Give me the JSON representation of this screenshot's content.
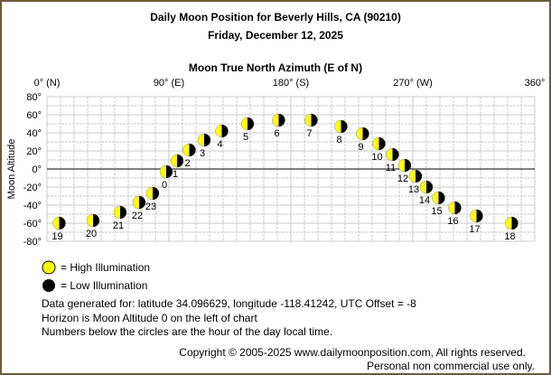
{
  "chart_data": {
    "type": "scatter",
    "title": "Daily Moon Position for Beverly Hills, CA (90210)",
    "subtitle": "Friday, December 12, 2025",
    "xlabel": "Moon True North Azimuth (E of N)",
    "ylabel": "Moon Altitude",
    "xlim": [
      0,
      360
    ],
    "ylim": [
      -80,
      80
    ],
    "grid": true,
    "x_ticks": [
      {
        "v": 0,
        "label": "0° (N)"
      },
      {
        "v": 90,
        "label": "90° (E)"
      },
      {
        "v": 180,
        "label": "180° (S)"
      },
      {
        "v": 270,
        "label": "270° (W)"
      },
      {
        "v": 360,
        "label": "360°"
      }
    ],
    "y_ticks": [
      {
        "v": 80,
        "label": "80°"
      },
      {
        "v": 60,
        "label": "60°"
      },
      {
        "v": 40,
        "label": "40°"
      },
      {
        "v": 20,
        "label": "20°"
      },
      {
        "v": 0,
        "label": "0°"
      },
      {
        "v": -20,
        "label": "-20°"
      },
      {
        "v": -40,
        "label": "-40°"
      },
      {
        "v": -60,
        "label": "-60°"
      },
      {
        "v": -80,
        "label": "-80°"
      }
    ],
    "points": [
      {
        "hour": "19",
        "az": 9,
        "alt": -60
      },
      {
        "hour": "20",
        "az": 34,
        "alt": -57
      },
      {
        "hour": "21",
        "az": 54,
        "alt": -48
      },
      {
        "hour": "22",
        "az": 68,
        "alt": -37
      },
      {
        "hour": "23",
        "az": 78,
        "alt": -27
      },
      {
        "hour": "0",
        "az": 88,
        "alt": -3
      },
      {
        "hour": "1",
        "az": 96,
        "alt": 9
      },
      {
        "hour": "2",
        "az": 105,
        "alt": 21
      },
      {
        "hour": "3",
        "az": 116,
        "alt": 32
      },
      {
        "hour": "4",
        "az": 129,
        "alt": 42
      },
      {
        "hour": "5",
        "az": 148,
        "alt": 50
      },
      {
        "hour": "6",
        "az": 171,
        "alt": 54
      },
      {
        "hour": "7",
        "az": 195,
        "alt": 54
      },
      {
        "hour": "8",
        "az": 217,
        "alt": 47
      },
      {
        "hour": "9",
        "az": 233,
        "alt": 39
      },
      {
        "hour": "10",
        "az": 245,
        "alt": 28
      },
      {
        "hour": "11",
        "az": 255,
        "alt": 16
      },
      {
        "hour": "12",
        "az": 264,
        "alt": 4
      },
      {
        "hour": "13",
        "az": 272,
        "alt": -8
      },
      {
        "hour": "14",
        "az": 280,
        "alt": -20
      },
      {
        "hour": "15",
        "az": 289,
        "alt": -32
      },
      {
        "hour": "16",
        "az": 301,
        "alt": -43
      },
      {
        "hour": "17",
        "az": 317,
        "alt": -52
      },
      {
        "hour": "18",
        "az": 343,
        "alt": -60
      }
    ],
    "colors": {
      "high": "#ffff00",
      "low": "#000000",
      "grid": "#c8c8c8",
      "border": "#6b5a3a"
    }
  },
  "legend": {
    "high": "= High Illumination",
    "low": "= Low Illumination"
  },
  "notes": [
    "Data generated for: latitude 34.096629, longitude -118.41242, UTC Offset = -8",
    "Horizon is Moon Altitude 0 on the left of chart",
    "Numbers below the circles are the hour of the day local time."
  ],
  "copyright": "Copyright © 2005-2025 www.dailymoonposition.com, All rights reserved.",
  "usage": "Personal non commercial use only."
}
